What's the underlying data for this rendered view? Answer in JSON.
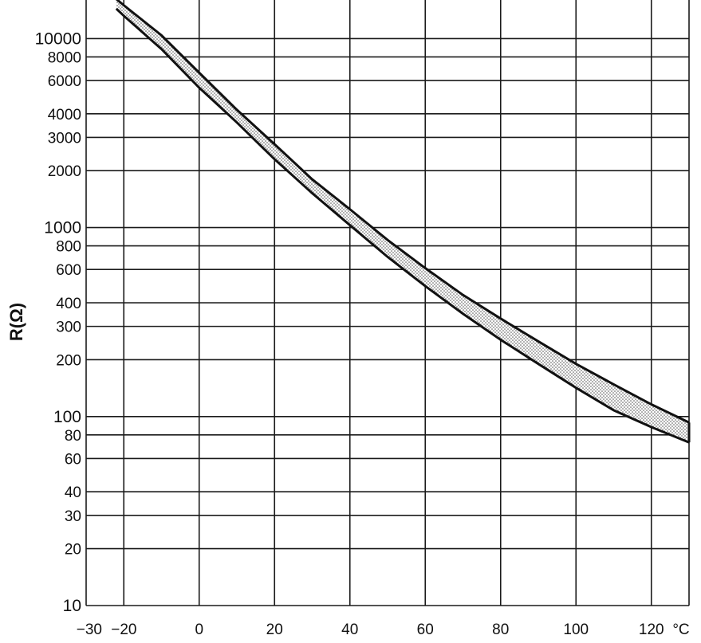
{
  "chart_data": {
    "type": "area",
    "xlabel": "",
    "ylabel": "R(Ω)",
    "x_unit_label": "°C",
    "xlim": [
      -30,
      130
    ],
    "ylim": [
      10,
      16000
    ],
    "y_scale": "log",
    "grid": true,
    "x_ticks": [
      -30,
      -20,
      0,
      20,
      40,
      60,
      80,
      100,
      120
    ],
    "x_tick_labels": [
      "−30",
      "−20",
      "0",
      "20",
      "40",
      "60",
      "80",
      "100",
      "120"
    ],
    "y_ticks": [
      10,
      20,
      30,
      40,
      60,
      80,
      100,
      200,
      300,
      400,
      600,
      800,
      1000,
      2000,
      3000,
      4000,
      6000,
      8000,
      10000
    ],
    "y_tick_labels": [
      "10",
      "20",
      "30",
      "40",
      "60",
      "80",
      "100",
      "200",
      "300",
      "400",
      "600",
      "800",
      "1000",
      "2000",
      "3000",
      "4000",
      "6000",
      "8000",
      "10000"
    ],
    "series": [
      {
        "role": "upper",
        "x": [
          -22,
          -20,
          -10,
          0,
          10,
          20,
          30,
          40,
          50,
          60,
          70,
          80,
          90,
          100,
          110,
          120,
          130
        ],
        "values": [
          16200,
          15000,
          10400,
          6600,
          4200,
          2760,
          1800,
          1250,
          860,
          610,
          440,
          330,
          250,
          190,
          148,
          116,
          93
        ]
      },
      {
        "role": "lower",
        "x": [
          -22,
          -20,
          -10,
          0,
          10,
          20,
          30,
          40,
          50,
          60,
          70,
          80,
          90,
          100,
          110,
          120,
          130
        ],
        "values": [
          14400,
          13200,
          8800,
          5500,
          3600,
          2300,
          1520,
          1030,
          700,
          490,
          350,
          255,
          190,
          142,
          108,
          88,
          73
        ]
      }
    ]
  }
}
